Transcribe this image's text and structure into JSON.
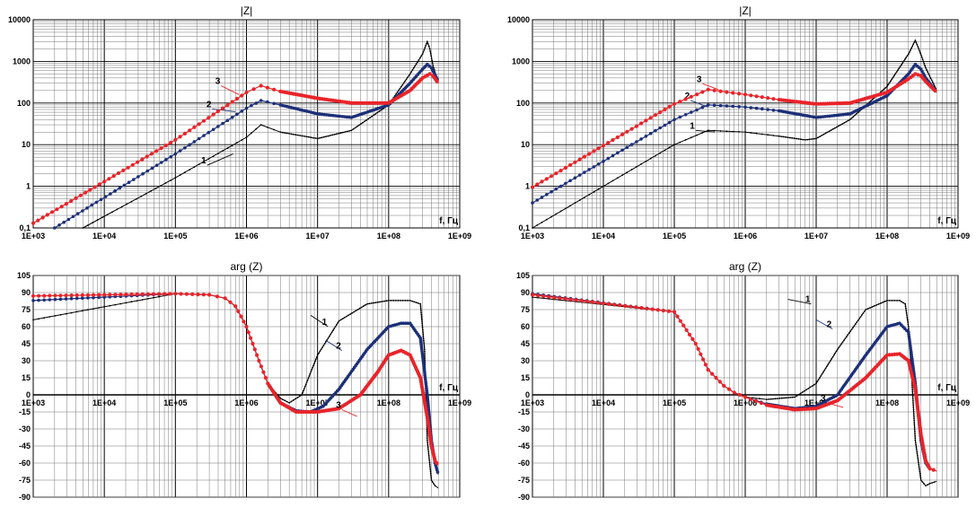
{
  "colors": {
    "series1": "#000000",
    "series2": "#1c2f78",
    "series3": "#e8242a",
    "grid": "#777777",
    "gridMajor": "#000000"
  },
  "chart_data": [
    {
      "type": "line",
      "title": "|Z|",
      "xlabel": "f, Гц",
      "log_x": true,
      "log_y": true,
      "xlim": [
        1000,
        1000000000
      ],
      "ylim": [
        0.1,
        10000
      ],
      "xticks": [
        {
          "v": 1000,
          "t": "1E+03"
        },
        {
          "v": 10000,
          "t": "1E+04"
        },
        {
          "v": 100000,
          "t": "1E+05"
        },
        {
          "v": 1000000,
          "t": "1E+06"
        },
        {
          "v": 10000000,
          "t": "1E+07"
        },
        {
          "v": 100000000,
          "t": "1E+08"
        },
        {
          "v": 1000000000,
          "t": "1E+09"
        }
      ],
      "yticks": [
        {
          "v": 0.1,
          "t": "0,1"
        },
        {
          "v": 1,
          "t": "1"
        },
        {
          "v": 10,
          "t": "10"
        },
        {
          "v": 100,
          "t": "100"
        },
        {
          "v": 1000,
          "t": "1000"
        },
        {
          "v": 10000,
          "t": "10000"
        }
      ],
      "series": [
        {
          "label": "1",
          "x": [
            5000,
            100000,
            1000000,
            1600000,
            3000000,
            10000000,
            30000000,
            100000000,
            200000000,
            300000000,
            350000000,
            380000000,
            420000000,
            500000000
          ],
          "y": [
            0.1,
            1.6,
            15,
            30,
            20,
            14,
            22,
            90,
            500,
            1500,
            3000,
            2000,
            800,
            300
          ],
          "callout": {
            "lx": 280000,
            "ly": 3.2,
            "tx": 650000,
            "ty": 6
          }
        },
        {
          "label": "2",
          "x": [
            2000,
            100000,
            1000000,
            1600000,
            3000000,
            10000000,
            30000000,
            100000000,
            200000000,
            300000000,
            350000000,
            400000000,
            500000000
          ],
          "y": [
            0.1,
            6,
            75,
            115,
            90,
            55,
            45,
            90,
            300,
            650,
            850,
            700,
            330
          ],
          "callout": {
            "lx": 330000,
            "ly": 72,
            "tx": 700000,
            "ty": 62
          }
        },
        {
          "label": "3",
          "x": [
            1000,
            100000,
            1000000,
            1600000,
            3000000,
            10000000,
            30000000,
            100000000,
            200000000,
            300000000,
            380000000,
            420000000,
            500000000
          ],
          "y": [
            0.13,
            13,
            180,
            260,
            190,
            130,
            100,
            100,
            200,
            400,
            500,
            450,
            300
          ],
          "callout": {
            "lx": 440000,
            "ly": 260,
            "tx": 780000,
            "ty": 160
          }
        }
      ]
    },
    {
      "type": "line",
      "title": "|Z|",
      "xlabel": "f, Гц",
      "log_x": true,
      "log_y": true,
      "xlim": [
        1000,
        1000000000
      ],
      "ylim": [
        0.1,
        10000
      ],
      "xticks": [
        {
          "v": 1000,
          "t": "1E+03"
        },
        {
          "v": 10000,
          "t": "1E+04"
        },
        {
          "v": 100000,
          "t": "1E+05"
        },
        {
          "v": 1000000,
          "t": "1E+06"
        },
        {
          "v": 10000000,
          "t": "1E+07"
        },
        {
          "v": 100000000,
          "t": "1E+08"
        },
        {
          "v": 1000000000,
          "t": "1E+09"
        }
      ],
      "yticks": [
        {
          "v": 0.1,
          "t": "0,1"
        },
        {
          "v": 1,
          "t": "1"
        },
        {
          "v": 10,
          "t": "10"
        },
        {
          "v": 100,
          "t": "100"
        },
        {
          "v": 1000,
          "t": "1000"
        },
        {
          "v": 10000,
          "t": "10000"
        }
      ],
      "series": [
        {
          "label": "1",
          "x": [
            1000,
            100000,
            300000,
            1000000,
            3000000,
            7000000,
            10000000,
            30000000,
            100000000,
            200000000,
            250000000,
            280000000,
            350000000,
            500000000
          ],
          "y": [
            0.1,
            10,
            22,
            20,
            16,
            13,
            14,
            40,
            250,
            1500,
            3200,
            2000,
            700,
            200
          ],
          "callout": {
            "lx": 200000,
            "ly": 22,
            "tx": 370000,
            "ty": 20
          }
        },
        {
          "label": "2",
          "x": [
            1000,
            100000,
            300000,
            1000000,
            3000000,
            10000000,
            30000000,
            100000000,
            200000000,
            250000000,
            300000000,
            350000000,
            500000000
          ],
          "y": [
            0.4,
            40,
            90,
            80,
            65,
            45,
            55,
            150,
            500,
            850,
            650,
            400,
            180
          ],
          "callout": {
            "lx": 170000,
            "ly": 115,
            "tx": 300000,
            "ty": 80
          }
        },
        {
          "label": "3",
          "x": [
            1000,
            100000,
            300000,
            1000000,
            3000000,
            10000000,
            30000000,
            100000000,
            200000000,
            250000000,
            300000000,
            350000000,
            500000000
          ],
          "y": [
            0.95,
            95,
            210,
            160,
            120,
            95,
            100,
            180,
            380,
            500,
            450,
            330,
            180
          ],
          "callout": {
            "lx": 250000,
            "ly": 290,
            "tx": 420000,
            "ty": 210
          }
        }
      ]
    },
    {
      "type": "line",
      "title": "arg (Z)",
      "xlabel": "f, Гц",
      "log_x": true,
      "log_y": false,
      "xlim": [
        1000,
        1000000000
      ],
      "ylim": [
        -90,
        105
      ],
      "xaxis_at": 0,
      "xticks": [
        {
          "v": 1000,
          "t": "1E+03"
        },
        {
          "v": 10000,
          "t": "1E+04"
        },
        {
          "v": 100000,
          "t": "1E+05"
        },
        {
          "v": 1000000,
          "t": "1E+06"
        },
        {
          "v": 10000000,
          "t": "1E+07"
        },
        {
          "v": 100000000,
          "t": "1E+08"
        },
        {
          "v": 1000000000,
          "t": "1E+09"
        }
      ],
      "yticks": [
        {
          "v": -90,
          "t": "-90"
        },
        {
          "v": -75,
          "t": "-75"
        },
        {
          "v": -60,
          "t": "-60"
        },
        {
          "v": -45,
          "t": "-45"
        },
        {
          "v": -30,
          "t": "-30"
        },
        {
          "v": -15,
          "t": "-15"
        },
        {
          "v": 0,
          "t": "0"
        },
        {
          "v": 15,
          "t": "15"
        },
        {
          "v": 30,
          "t": "30"
        },
        {
          "v": 45,
          "t": "45"
        },
        {
          "v": 60,
          "t": "60"
        },
        {
          "v": 75,
          "t": "75"
        },
        {
          "v": 90,
          "t": "90"
        },
        {
          "v": 105,
          "t": "105"
        }
      ],
      "series": [
        {
          "label": "1",
          "x": [
            1000,
            100000,
            300000,
            500000,
            700000,
            1000000,
            1500000,
            2000000,
            3000000,
            4000000,
            6000000,
            10000000,
            20000000,
            50000000,
            100000000,
            200000000,
            280000000,
            320000000,
            350000000,
            400000000,
            450000000,
            500000000
          ],
          "y": [
            66,
            89,
            88,
            85,
            78,
            60,
            30,
            10,
            -3,
            -7,
            0,
            35,
            65,
            80,
            83,
            83,
            80,
            40,
            -40,
            -75,
            -80,
            -82
          ],
          "callout": {
            "lx": 14000000,
            "ly": 60,
            "tx": 8000000,
            "ty": 70
          }
        },
        {
          "label": "2",
          "x": [
            1000,
            100000,
            300000,
            500000,
            700000,
            1000000,
            1500000,
            2000000,
            3000000,
            5000000,
            8000000,
            12000000,
            20000000,
            50000000,
            100000000,
            150000000,
            200000000,
            280000000,
            350000000,
            400000000,
            450000000,
            500000000
          ],
          "y": [
            83,
            89,
            88,
            85,
            78,
            60,
            30,
            10,
            -7,
            -14,
            -15,
            -10,
            5,
            40,
            60,
            63,
            63,
            50,
            0,
            -40,
            -60,
            -70
          ],
          "callout": {
            "lx": 22000000,
            "ly": 39,
            "tx": 13000000,
            "ty": 48
          }
        },
        {
          "label": "3",
          "x": [
            1000,
            100000,
            300000,
            500000,
            700000,
            1000000,
            1500000,
            2000000,
            3000000,
            5000000,
            10000000,
            20000000,
            40000000,
            70000000,
            100000000,
            150000000,
            200000000,
            280000000,
            350000000,
            400000000,
            450000000,
            500000000
          ],
          "y": [
            87,
            89,
            88,
            85,
            78,
            60,
            30,
            10,
            -7,
            -15,
            -15,
            -12,
            0,
            20,
            35,
            39,
            35,
            15,
            -20,
            -45,
            -58,
            -62
          ],
          "callout": {
            "lx": 22000000,
            "ly": -13,
            "tx": 36000000,
            "ty": -19
          }
        }
      ]
    },
    {
      "type": "line",
      "title": "arg (Z)",
      "xlabel": "f, Гц",
      "log_x": true,
      "log_y": false,
      "xlim": [
        1000,
        1000000000
      ],
      "ylim": [
        -90,
        105
      ],
      "xaxis_at": 0,
      "xticks": [
        {
          "v": 1000,
          "t": "1E+03"
        },
        {
          "v": 10000,
          "t": "1E+04"
        },
        {
          "v": 100000,
          "t": "1E+05"
        },
        {
          "v": 1000000,
          "t": "1E+06"
        },
        {
          "v": 10000000,
          "t": "1E+07"
        },
        {
          "v": 100000000,
          "t": "1E+08"
        },
        {
          "v": 1000000000,
          "t": "1E+09"
        }
      ],
      "yticks": [
        {
          "v": -90,
          "t": "-90"
        },
        {
          "v": -75,
          "t": "-75"
        },
        {
          "v": -60,
          "t": "-60"
        },
        {
          "v": -45,
          "t": "-45"
        },
        {
          "v": -30,
          "t": "-30"
        },
        {
          "v": -15,
          "t": "-15"
        },
        {
          "v": 0,
          "t": "0"
        },
        {
          "v": 15,
          "t": "15"
        },
        {
          "v": 30,
          "t": "30"
        },
        {
          "v": 45,
          "t": "45"
        },
        {
          "v": 60,
          "t": "60"
        },
        {
          "v": 75,
          "t": "75"
        },
        {
          "v": 90,
          "t": "90"
        },
        {
          "v": 105,
          "t": "105"
        }
      ],
      "series": [
        {
          "label": "1",
          "x": [
            1000,
            100000,
            200000,
            300000,
            500000,
            700000,
            1000000,
            2000000,
            5000000,
            10000000,
            20000000,
            50000000,
            100000000,
            150000000,
            180000000,
            200000000,
            220000000,
            250000000,
            300000000,
            350000000,
            400000000,
            500000000
          ],
          "y": [
            86,
            73,
            45,
            22,
            8,
            2,
            -2,
            -4,
            -2,
            10,
            40,
            75,
            83,
            83,
            80,
            60,
            20,
            -40,
            -75,
            -80,
            -78,
            -76
          ],
          "callout": {
            "lx": 8500000,
            "ly": 80,
            "tx": 4000000,
            "ty": 84
          }
        },
        {
          "label": "2",
          "x": [
            1000,
            100000,
            200000,
            300000,
            500000,
            700000,
            1000000,
            2000000,
            5000000,
            10000000,
            20000000,
            50000000,
            100000000,
            150000000,
            200000000,
            250000000,
            300000000,
            350000000,
            400000000,
            450000000,
            500000000
          ],
          "y": [
            89,
            73,
            45,
            22,
            8,
            2,
            -2,
            -8,
            -12,
            -10,
            0,
            35,
            60,
            63,
            55,
            10,
            -40,
            -60,
            -65,
            -66,
            -67
          ],
          "callout": {
            "lx": 17000000,
            "ly": 58,
            "tx": 10000000,
            "ty": 66
          }
        },
        {
          "label": "3",
          "x": [
            1000,
            100000,
            200000,
            300000,
            500000,
            700000,
            1000000,
            2000000,
            5000000,
            10000000,
            20000000,
            50000000,
            100000000,
            150000000,
            200000000,
            250000000,
            300000000,
            350000000,
            400000000,
            450000000,
            500000000
          ],
          "y": [
            88,
            73,
            45,
            22,
            8,
            2,
            -2,
            -9,
            -13,
            -12,
            -5,
            15,
            35,
            36,
            30,
            5,
            -35,
            -58,
            -65,
            -66,
            -67
          ],
          "callout": {
            "lx": 14000000,
            "ly": -7,
            "tx": 24000000,
            "ty": -11
          }
        }
      ]
    }
  ]
}
